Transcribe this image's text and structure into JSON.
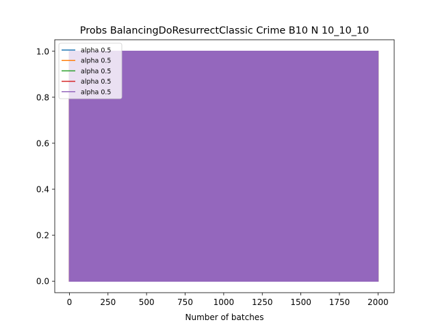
{
  "chart_data": {
    "type": "line",
    "title": "Probs BalancingDoResurrectClassic Crime B10 N 10_10_10",
    "xlabel": "Number of batches",
    "ylabel": "",
    "xlim": [
      -95,
      2105
    ],
    "ylim": [
      -0.05,
      1.05
    ],
    "xticks": [
      0,
      250,
      500,
      750,
      1000,
      1250,
      1500,
      1750,
      2000
    ],
    "xtick_labels": [
      "0",
      "250",
      "500",
      "750",
      "1000",
      "1250",
      "1500",
      "1750",
      "2000"
    ],
    "yticks": [
      0.0,
      0.2,
      0.4,
      0.6,
      0.8,
      1.0
    ],
    "ytick_labels": [
      "0.0",
      "0.2",
      "0.4",
      "0.6",
      "0.8",
      "1.0"
    ],
    "grid": false,
    "legend_position": "top-left",
    "series": [
      {
        "name": "alpha 0.5",
        "color": "#1f77b4",
        "x": [
          0,
          0,
          2000,
          2000,
          0
        ],
        "y": [
          0,
          1,
          1,
          0,
          0
        ]
      },
      {
        "name": "alpha 0.5",
        "color": "#ff7f0e",
        "x": [
          0,
          0,
          2000,
          2000,
          0
        ],
        "y": [
          0,
          1,
          1,
          0,
          0
        ]
      },
      {
        "name": "alpha 0.5",
        "color": "#2ca02c",
        "x": [
          0,
          0,
          2000,
          2000,
          0
        ],
        "y": [
          0,
          1,
          1,
          0,
          0
        ]
      },
      {
        "name": "alpha 0.5",
        "color": "#d62728",
        "x": [
          0,
          0,
          2000,
          2000,
          0
        ],
        "y": [
          0,
          1,
          1,
          0,
          0
        ]
      },
      {
        "name": "alpha 0.5",
        "color": "#9467bd",
        "x": [
          0,
          0,
          2000,
          2000,
          0
        ],
        "y": [
          0,
          1,
          1,
          0,
          0
        ]
      }
    ]
  }
}
